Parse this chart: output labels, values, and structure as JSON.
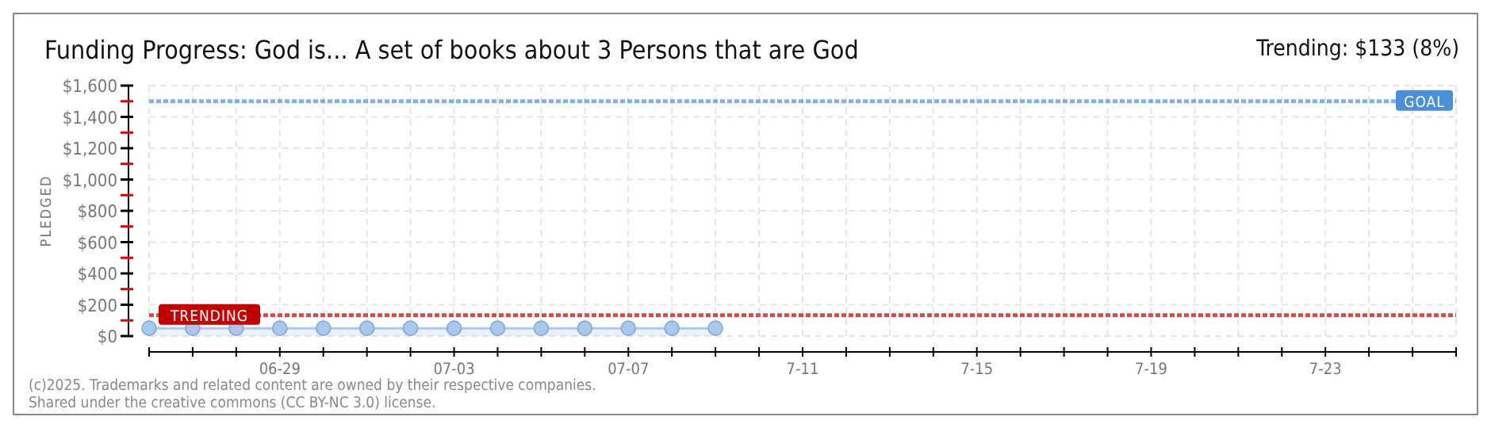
{
  "chart_data": {
    "type": "area",
    "title": "Funding Progress: God is... A set of books about 3 Persons that are God",
    "subtitle": "Trending: $133 (8%)",
    "ylabel": "PLEDGED",
    "x": [
      "--06-26",
      "--06-27",
      "--06-28",
      "--06-29",
      "--06-30",
      "--07-01",
      "--07-02",
      "--07-03",
      "--07-04",
      "--07-05",
      "--07-06",
      "--07-07",
      "--07-08",
      "--07-09"
    ],
    "series": [
      {
        "color": "#a9c8ec",
        "values": [
          50,
          50,
          50,
          50,
          50,
          50,
          50,
          50,
          50,
          50,
          50,
          50,
          50,
          50
        ]
      }
    ],
    "xlim": [
      "--06-26",
      "--07-26"
    ],
    "xticks": [
      {
        "value": "--06-26",
        "label": null
      },
      {
        "value": "--06-27",
        "label": null
      },
      {
        "value": "--06-28",
        "label": null
      },
      {
        "value": "--06-29",
        "label": "06-29"
      },
      {
        "value": "--06-30",
        "label": null
      },
      {
        "value": "--07-01",
        "label": null
      },
      {
        "value": "--07-02",
        "label": null
      },
      {
        "value": "--07-03",
        "label": "07-03"
      },
      {
        "value": "--07-04",
        "label": null
      },
      {
        "value": "--07-05",
        "label": null
      },
      {
        "value": "--07-06",
        "label": null
      },
      {
        "value": "--07-07",
        "label": "07-07"
      },
      {
        "value": "--07-08",
        "label": null
      },
      {
        "value": "--07-09",
        "label": null
      },
      {
        "value": "--07-10",
        "label": null
      },
      {
        "value": "--07-11",
        "label": "7-11"
      },
      {
        "value": "--07-12",
        "label": null
      },
      {
        "value": "--07-13",
        "label": null
      },
      {
        "value": "--07-14",
        "label": null
      },
      {
        "value": "--07-15",
        "label": "7-15"
      },
      {
        "value": "--07-16",
        "label": null
      },
      {
        "value": "--07-17",
        "label": null
      },
      {
        "value": "--07-18",
        "label": null
      },
      {
        "value": "--07-19",
        "label": "7-19"
      },
      {
        "value": "--07-20",
        "label": null
      },
      {
        "value": "--07-21",
        "label": null
      },
      {
        "value": "--07-22",
        "label": null
      },
      {
        "value": "--07-23",
        "label": "7-23"
      },
      {
        "value": "--07-24",
        "label": null
      },
      {
        "value": "--07-25",
        "label": null
      },
      {
        "value": "--07-26",
        "label": null
      }
    ],
    "ylim": [
      0,
      1600
    ],
    "yticks": [
      {
        "value": 0,
        "label": "$0"
      },
      {
        "value": 100,
        "label": null
      },
      {
        "value": 200,
        "label": "$200"
      },
      {
        "value": 300,
        "label": null
      },
      {
        "value": 400,
        "label": "$400"
      },
      {
        "value": 500,
        "label": null
      },
      {
        "value": 600,
        "label": "$600"
      },
      {
        "value": 700,
        "label": null
      },
      {
        "value": 800,
        "label": "$800"
      },
      {
        "value": 900,
        "label": null
      },
      {
        "value": 1000,
        "label": "$1,000"
      },
      {
        "value": 1100,
        "label": null
      },
      {
        "value": 1200,
        "label": "$1,200"
      },
      {
        "value": 1300,
        "label": null
      },
      {
        "value": 1400,
        "label": "$1,400"
      },
      {
        "value": 1500,
        "label": null
      },
      {
        "value": 1600,
        "label": "$1,600"
      }
    ],
    "ref_lines": [
      {
        "axis": "y",
        "value": 1500,
        "label": "GOAL",
        "color": "#4a90d9",
        "line_style": "dashed"
      },
      {
        "axis": "y",
        "value": 133,
        "label": "TRENDING",
        "color": "#c00000",
        "line_style": "dashed"
      }
    ],
    "grid": true,
    "marker": "circle",
    "annotations": [
      "(c)2025. Trademarks and related content are owned by their respective companies.",
      "Shared under the creative commons (CC BY-NC 3.0) license."
    ]
  }
}
